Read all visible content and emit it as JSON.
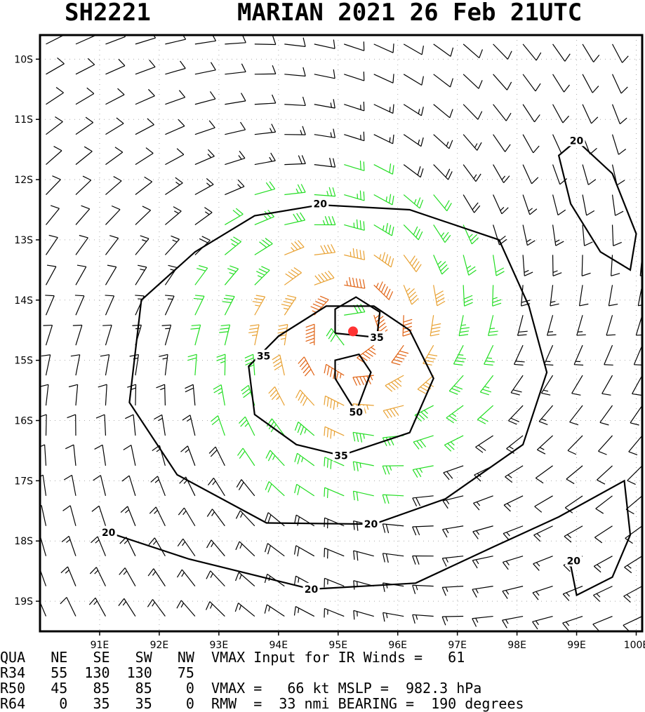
{
  "header": {
    "storm_id": "SH2221",
    "storm_info": "MARIAN 2021 26 Feb 21UTC"
  },
  "chart_data": {
    "type": "wind-barb-map",
    "title": "SH2221   MARIAN 2021 26 Feb 21UTC",
    "x_ticks": [
      "91E",
      "92E",
      "93E",
      "94E",
      "95E",
      "96E",
      "97E",
      "98E",
      "99E",
      "100E"
    ],
    "x_tick_values": [
      91,
      92,
      93,
      94,
      95,
      96,
      97,
      98,
      99,
      100
    ],
    "y_ticks": [
      "10S",
      "11S",
      "12S",
      "13S",
      "14S",
      "15S",
      "16S",
      "17S",
      "18S",
      "19S"
    ],
    "y_tick_values": [
      -10,
      -11,
      -12,
      -13,
      -14,
      -15,
      -16,
      -17,
      -18,
      -19
    ],
    "xlim": [
      90.0,
      100.1
    ],
    "ylim": [
      -19.5,
      -9.6
    ],
    "center": {
      "lon": 95.25,
      "lat": -14.52
    },
    "contour_levels_kt": [
      20,
      35,
      50
    ],
    "contour_labels": [
      {
        "text": "20",
        "lon": 94.7,
        "lat": -12.4
      },
      {
        "text": "20",
        "lon": 99.0,
        "lat": -11.35
      },
      {
        "text": "35",
        "lon": 93.75,
        "lat": -14.93
      },
      {
        "text": "35",
        "lon": 95.65,
        "lat": -14.62
      },
      {
        "text": "50",
        "lon": 95.3,
        "lat": -15.86
      },
      {
        "text": "35",
        "lon": 95.05,
        "lat": -16.58
      },
      {
        "text": "20",
        "lon": 91.15,
        "lat": -17.86
      },
      {
        "text": "20",
        "lon": 95.55,
        "lat": -17.72
      },
      {
        "text": "20",
        "lon": 98.95,
        "lat": -18.33
      },
      {
        "text": "20",
        "lon": 94.55,
        "lat": -18.8
      }
    ],
    "barb_colors": {
      "lt20": "#000000",
      "20to35": "#22dd22",
      "35to50": "#e8a030",
      "gt50": "#e06010",
      "center": "#ff3333",
      "contour": "#000000"
    }
  },
  "info_panel": {
    "row1": "QUA   NE   SE   SW   NW  VMAX Input for IR Winds =   61",
    "row2": "R34   55  130  130   75",
    "row3": "R50   45   85   85    0  VMAX =   66 kt MSLP =  982.3 hPa",
    "row4": "R64    0   35   35    0  RMW  =  33 nmi BEARING =  190 degrees"
  }
}
